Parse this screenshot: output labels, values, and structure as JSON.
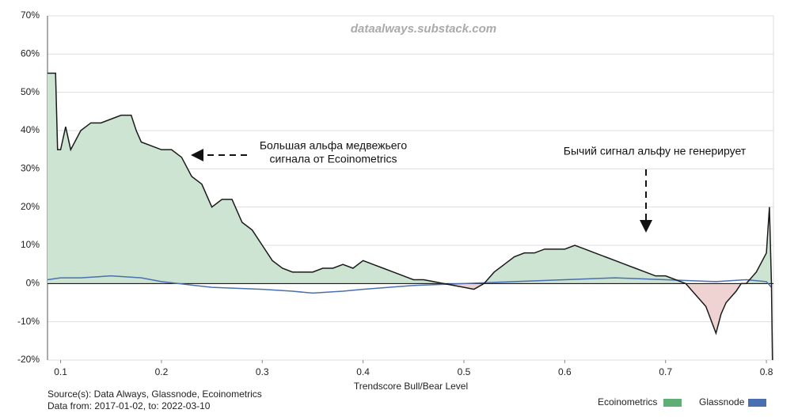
{
  "chart_data": {
    "type": "area-line",
    "watermark": "dataalways.substack.com",
    "x_label": "Trendscore Bull/Bear Level",
    "source": "Source(s): Data Always, Glassnode, Ecoinometrics",
    "date_range": "Data from: 2017-01-02, to: 2022-03-10",
    "annotations": [
      {
        "lines": [
          "Большая альфа медвежьего",
          "сигнала от Ecoinometrics"
        ]
      },
      {
        "lines": [
          "Бычий сигнал альфу не генерирует"
        ]
      }
    ],
    "xlim": [
      0.087,
      0.807
    ],
    "ylim": [
      -20,
      70
    ],
    "xticks": [
      0.1,
      0.2,
      0.3,
      0.4,
      0.5,
      0.6,
      0.7,
      0.8
    ],
    "yticks": [
      {
        "value": -20,
        "label": "-20%"
      },
      {
        "value": -10,
        "label": "-10%"
      },
      {
        "value": 0,
        "label": "0%"
      },
      {
        "value": 10,
        "label": "10%"
      },
      {
        "value": 20,
        "label": "20%"
      },
      {
        "value": 30,
        "label": "30%"
      },
      {
        "value": 40,
        "label": "40%"
      },
      {
        "value": 50,
        "label": "50%"
      },
      {
        "value": 60,
        "label": "60%"
      },
      {
        "value": 70,
        "label": "70%"
      }
    ],
    "grid": true,
    "positive_fill": "#cde4d2",
    "negative_fill": "#efd3d3",
    "series": [
      {
        "name": "Ecoinometrics",
        "color": "#5fae73",
        "line_color": "#1a1a1a",
        "x": [
          0.087,
          0.095,
          0.097,
          0.1,
          0.105,
          0.11,
          0.12,
          0.13,
          0.14,
          0.15,
          0.16,
          0.17,
          0.175,
          0.18,
          0.19,
          0.2,
          0.21,
          0.22,
          0.23,
          0.24,
          0.25,
          0.26,
          0.27,
          0.28,
          0.29,
          0.3,
          0.31,
          0.32,
          0.33,
          0.34,
          0.35,
          0.36,
          0.37,
          0.38,
          0.39,
          0.4,
          0.41,
          0.42,
          0.43,
          0.44,
          0.45,
          0.46,
          0.47,
          0.48,
          0.49,
          0.5,
          0.51,
          0.52,
          0.53,
          0.54,
          0.55,
          0.56,
          0.57,
          0.58,
          0.59,
          0.6,
          0.61,
          0.62,
          0.63,
          0.64,
          0.65,
          0.66,
          0.67,
          0.68,
          0.69,
          0.7,
          0.71,
          0.72,
          0.73,
          0.74,
          0.75,
          0.755,
          0.76,
          0.77,
          0.775,
          0.78,
          0.79,
          0.8,
          0.803,
          0.805,
          0.806
        ],
        "values": [
          55,
          55,
          35,
          35,
          41,
          35,
          40,
          42,
          42,
          43,
          44,
          44,
          40,
          37,
          36,
          35,
          35,
          33,
          28,
          26,
          20,
          22,
          22,
          16,
          14,
          10,
          6,
          4,
          3,
          3,
          3,
          4,
          4,
          5,
          4,
          6,
          5,
          4,
          3,
          2,
          1,
          1,
          0.5,
          0,
          -0.5,
          -1,
          -1.5,
          0,
          3,
          5,
          7,
          8,
          8,
          9,
          9,
          9,
          10,
          9,
          8,
          7,
          6,
          5,
          4,
          3,
          2,
          2,
          1,
          0,
          -3,
          -6,
          -13,
          -8,
          -5,
          -2,
          0,
          0,
          3,
          8,
          20,
          0,
          -20
        ]
      },
      {
        "name": "Glassnode",
        "color": "#4a6fb0",
        "line_color": "#4a6fb0",
        "x": [
          0.087,
          0.1,
          0.12,
          0.15,
          0.18,
          0.2,
          0.25,
          0.3,
          0.33,
          0.35,
          0.38,
          0.4,
          0.45,
          0.5,
          0.55,
          0.6,
          0.65,
          0.7,
          0.75,
          0.78,
          0.8,
          0.805
        ],
        "values": [
          1,
          1.5,
          1.5,
          2,
          1.5,
          0.5,
          -1,
          -1.5,
          -2,
          -2.5,
          -2,
          -1.5,
          -0.5,
          0,
          0.5,
          1,
          1.5,
          1,
          0.5,
          1,
          0.5,
          -1
        ]
      }
    ]
  }
}
